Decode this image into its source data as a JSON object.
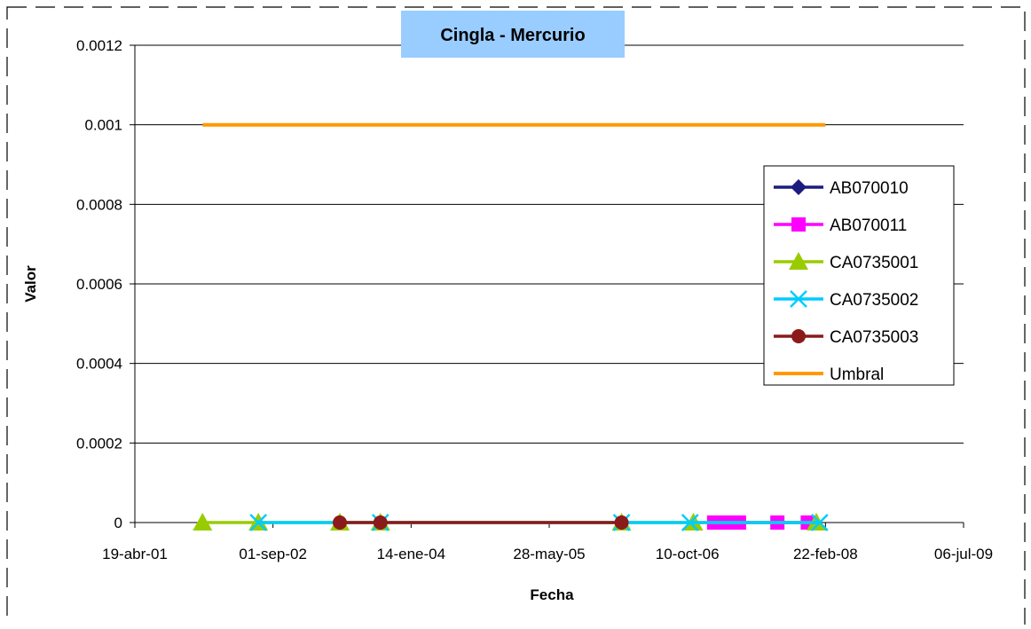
{
  "chart_data": {
    "type": "line",
    "title": "Cingla - Mercurio",
    "xlabel": "Fecha",
    "ylabel": "Valor",
    "x_axis": {
      "type": "date",
      "min": "2001-04-19",
      "max": "2009-07-06",
      "ticks": [
        "2001-04-19",
        "2002-09-01",
        "2004-01-14",
        "2005-05-28",
        "2006-10-10",
        "2008-02-22",
        "2009-07-06"
      ],
      "tick_labels": [
        "19-abr-01",
        "01-sep-02",
        "14-ene-04",
        "28-may-05",
        "10-oct-06",
        "22-feb-08",
        "06-jul-09"
      ]
    },
    "y_axis": {
      "min": 0,
      "max": 0.0012,
      "ticks": [
        0,
        0.0002,
        0.0004,
        0.0006,
        0.0008,
        0.001,
        0.0012
      ],
      "tick_labels": [
        "0",
        "0.0002",
        "0.0004",
        "0.0006",
        "0.0008",
        "0.001",
        "0.0012"
      ]
    },
    "grid": "horizontal",
    "legend_position": "right",
    "series": [
      {
        "name": "AB070010",
        "color": "#1c1c80",
        "marker": "diamond",
        "points": []
      },
      {
        "name": "AB070011",
        "color": "#ff00ff",
        "marker": "square",
        "points": [
          {
            "x": "2007-01-15",
            "y": 0
          },
          {
            "x": "2007-03-01",
            "y": 0
          },
          {
            "x": "2007-04-15",
            "y": 0
          },
          {
            "x": "2007-09-01",
            "y": 0
          },
          {
            "x": "2007-12-20",
            "y": 0
          }
        ]
      },
      {
        "name": "CA0735001",
        "color": "#99cc00",
        "marker": "triangle",
        "points": [
          {
            "x": "2001-12-20",
            "y": 0
          },
          {
            "x": "2002-07-10",
            "y": 0
          },
          {
            "x": "2003-05-01",
            "y": 0
          },
          {
            "x": "2003-09-25",
            "y": 0
          },
          {
            "x": "2006-02-14",
            "y": 0
          },
          {
            "x": "2006-11-01",
            "y": 0
          },
          {
            "x": "2008-01-20",
            "y": 0
          }
        ]
      },
      {
        "name": "CA0735002",
        "color": "#00ccff",
        "marker": "x",
        "points": [
          {
            "x": "2002-07-10",
            "y": 0
          },
          {
            "x": "2003-09-25",
            "y": 0
          },
          {
            "x": "2006-02-14",
            "y": 0
          },
          {
            "x": "2006-10-20",
            "y": 0
          },
          {
            "x": "2008-02-01",
            "y": 0
          }
        ]
      },
      {
        "name": "CA0735003",
        "color": "#8b1a1a",
        "marker": "circle",
        "points": [
          {
            "x": "2003-05-01",
            "y": 0
          },
          {
            "x": "2003-09-25",
            "y": 0
          },
          {
            "x": "2006-02-14",
            "y": 0
          }
        ]
      },
      {
        "name": "Umbral",
        "color": "#ff9900",
        "marker": "none",
        "points": [
          {
            "x": "2001-12-20",
            "y": 0.001
          },
          {
            "x": "2008-02-22",
            "y": 0.001
          }
        ]
      }
    ]
  }
}
